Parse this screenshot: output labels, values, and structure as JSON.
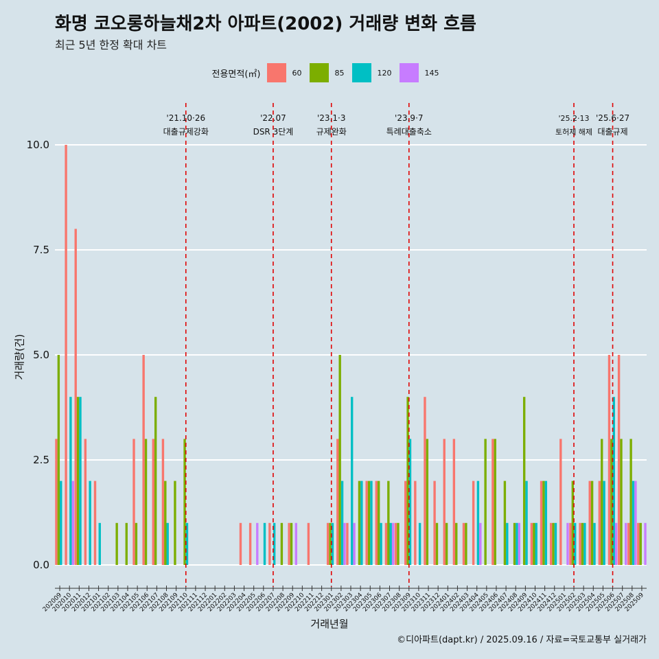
{
  "title": "화명 코오롱하늘채2차 아파트(2002) 거래량 변화 흐름",
  "subtitle": "최근 5년 한정 확대 차트",
  "caption": "©디아파트(dapt.kr) / 2025.09.16 / 자료=국토교통부 실거래가",
  "legend": {
    "title": "전용면적(㎡)",
    "items": [
      {
        "label": "60",
        "color": "#f8766d"
      },
      {
        "label": "85",
        "color": "#7cae00"
      },
      {
        "label": "120",
        "color": "#00bfc4"
      },
      {
        "label": "145",
        "color": "#c77cff"
      }
    ]
  },
  "chart_data": {
    "type": "bar",
    "xlabel": "거래년월",
    "ylabel": "거래량(건)",
    "ylim": [
      -0.45,
      10.6
    ],
    "yticks": [
      "0.0",
      "2.5",
      "5.0",
      "7.5",
      "10.0"
    ],
    "grid": true,
    "legend_position": "top",
    "months": [
      "202009",
      "202010",
      "202011",
      "202012",
      "202101",
      "202102",
      "202103",
      "202104",
      "202105",
      "202106",
      "202107",
      "202108",
      "202109",
      "202110",
      "202111",
      "202112",
      "202201",
      "202202",
      "202203",
      "202204",
      "202205",
      "202206",
      "202207",
      "202208",
      "202209",
      "202210",
      "202211",
      "202212",
      "202301",
      "202302",
      "202303",
      "202304",
      "202305",
      "202306",
      "202307",
      "202308",
      "202309",
      "202310",
      "202311",
      "202312",
      "202401",
      "202402",
      "202403",
      "202404",
      "202405",
      "202406",
      "202407",
      "202408",
      "202409",
      "202410",
      "202411",
      "202412",
      "202501",
      "202502",
      "202503",
      "202504",
      "202505",
      "202506",
      "202507",
      "202508",
      "202509"
    ],
    "tick_labels": [
      "202009",
      "202010",
      "202011",
      "202012",
      "202101",
      "202102",
      "202103",
      "202104",
      "202105",
      "202106",
      "202107",
      "202108",
      "202109",
      "202110",
      "202111",
      "202112",
      "202201",
      "202202",
      "202203",
      "202204",
      "202205",
      "202206",
      "202207",
      "202208",
      "202209",
      "202210",
      "202211",
      "202212",
      "202301",
      "202302",
      "202303",
      "202304",
      "202305",
      "202306",
      "202307",
      "202308",
      "202309",
      "202310",
      "202311",
      "202312",
      "202401",
      "202402",
      "202403",
      "202404",
      "202405",
      "202406",
      "202407",
      "202408",
      "202409",
      "202410",
      "202411",
      "202412",
      "202501",
      "202502",
      "202503",
      "202504",
      "202505",
      "202506",
      "202507",
      "202508",
      "202509"
    ],
    "series": [
      {
        "name": "60",
        "color": "#f8766d",
        "values": [
          3,
          10,
          8,
          3,
          2,
          0,
          0,
          0,
          3,
          5,
          3,
          3,
          0,
          0,
          0,
          0,
          0,
          0,
          0,
          1,
          1,
          0,
          1,
          0,
          1,
          0,
          1,
          0,
          1,
          3,
          1,
          0,
          2,
          2,
          1,
          1,
          2,
          2,
          4,
          2,
          3,
          3,
          1,
          2,
          0,
          3,
          0,
          0,
          0,
          1,
          2,
          1,
          3,
          1,
          1,
          2,
          2,
          5,
          5,
          1,
          1
        ]
      },
      {
        "name": "85",
        "color": "#7cae00",
        "values": [
          5,
          0,
          4,
          0,
          0,
          0,
          1,
          1,
          1,
          3,
          4,
          2,
          2,
          3,
          0,
          0,
          0,
          0,
          0,
          0,
          0,
          0,
          0,
          1,
          1,
          0,
          0,
          0,
          1,
          5,
          0,
          2,
          2,
          2,
          2,
          1,
          4,
          0,
          3,
          1,
          1,
          1,
          1,
          0,
          3,
          3,
          2,
          1,
          4,
          1,
          2,
          1,
          0,
          2,
          1,
          2,
          3,
          3,
          3,
          3,
          1
        ]
      },
      {
        "name": "120",
        "color": "#00bfc4",
        "values": [
          2,
          4,
          4,
          2,
          1,
          0,
          0,
          0,
          0,
          0,
          0,
          1,
          0,
          1,
          0,
          0,
          0,
          0,
          0,
          0,
          0,
          1,
          1,
          0,
          0,
          0,
          0,
          0,
          1,
          2,
          4,
          2,
          2,
          1,
          1,
          0,
          3,
          1,
          0,
          0,
          0,
          0,
          0,
          2,
          0,
          0,
          1,
          1,
          2,
          1,
          2,
          1,
          0,
          1,
          1,
          1,
          2,
          4,
          0,
          2,
          0
        ]
      },
      {
        "name": "145",
        "color": "#c77cff",
        "values": [
          0,
          2,
          0,
          0,
          0,
          0,
          0,
          0,
          0,
          0,
          0,
          0,
          0,
          0,
          0,
          0,
          0,
          0,
          0,
          0,
          1,
          0,
          0,
          0,
          1,
          0,
          0,
          0,
          0,
          1,
          1,
          0,
          0,
          0,
          1,
          0,
          0,
          0,
          0,
          0,
          0,
          0,
          0,
          1,
          0,
          0,
          0,
          1,
          0,
          0,
          0,
          0,
          1,
          0,
          0,
          0,
          0,
          1,
          1,
          2,
          1
        ]
      }
    ],
    "annotations": [
      {
        "date": "'21.10·26",
        "label": "대출규제강화",
        "month": "202110"
      },
      {
        "date": "'22.07",
        "label": "DSR 3단계",
        "month": "202207"
      },
      {
        "date": "'23.1·3",
        "label": "규제완화",
        "month": "202301"
      },
      {
        "date": "'23.9·7",
        "label": "특례대출축소",
        "month": "202309"
      },
      {
        "date": "'25.2·13",
        "label": "토허제 해제",
        "month": "202502"
      },
      {
        "date": "'25.6·27",
        "label": "대출규제",
        "month": "202506"
      }
    ]
  }
}
